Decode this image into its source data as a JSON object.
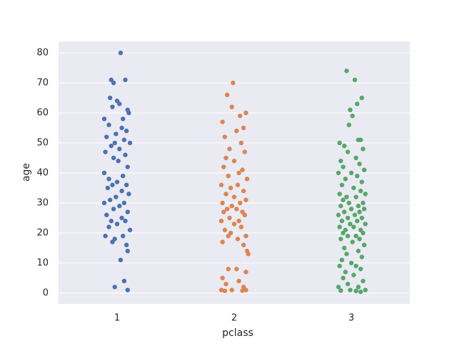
{
  "chart_data": {
    "type": "scatter",
    "x_label": "pclass",
    "y_label": "age",
    "xlim": [
      0.5,
      3.5
    ],
    "xticks": [
      1,
      2,
      3
    ],
    "ylim": [
      -3.6,
      83.8
    ],
    "yticks": [
      0,
      10,
      20,
      30,
      40,
      50,
      60,
      70,
      80
    ],
    "grid": "y",
    "background": "#eaeaf2",
    "series": [
      {
        "color": "#4c72b0",
        "x": [
          1.03,
          0.95,
          1.07,
          0.97,
          0.94,
          1.0,
          1.02,
          0.96,
          1.09,
          1.1,
          0.89,
          1.05,
          0.93,
          1.04,
          1.08,
          0.99,
          0.91,
          1.06,
          0.98,
          1.11,
          0.95,
          1.02,
          0.9,
          1.07,
          0.97,
          1.01,
          1.09,
          0.89,
          1.05,
          0.93,
          1.0,
          1.08,
          0.96,
          0.92,
          1.04,
          1.1,
          0.99,
          0.94,
          0.89,
          1.06,
          1.02,
          0.97,
          1.09,
          0.91,
          1.04,
          0.95,
          1.07,
          1.0,
          0.93,
          1.11,
          0.9,
          1.05,
          0.98,
          0.96,
          1.08,
          1.09,
          1.03,
          1.06,
          0.98,
          1.09
        ],
        "values": [
          80,
          71,
          71,
          70,
          65,
          64,
          63,
          62,
          61,
          60,
          58,
          58,
          56,
          55,
          54,
          53,
          52,
          51,
          50,
          50,
          49,
          48,
          47,
          46,
          45,
          44,
          42,
          40,
          39,
          38,
          37,
          36,
          36,
          35,
          34,
          33,
          32,
          31,
          30,
          30,
          29,
          28,
          27,
          26,
          25,
          24,
          24,
          23,
          22,
          21,
          19,
          19,
          18,
          17,
          16,
          14,
          11,
          4,
          2,
          1
        ]
      },
      {
        "color": "#dd8452",
        "x": [
          1.99,
          1.94,
          1.98,
          2.1,
          2.05,
          1.9,
          2.08,
          2.02,
          1.92,
          2.06,
          1.96,
          2.09,
          1.93,
          2.0,
          1.91,
          2.07,
          2.04,
          1.95,
          2.11,
          1.89,
          2.03,
          1.97,
          2.08,
          1.93,
          2.0,
          2.1,
          1.9,
          2.05,
          1.98,
          2.02,
          1.94,
          2.07,
          1.91,
          2.09,
          1.96,
          2.04,
          1.89,
          2.0,
          2.06,
          1.92,
          1.97,
          2.1,
          1.95,
          2.03,
          1.9,
          2.08,
          2.11,
          2.12,
          1.95,
          2.02,
          2.1,
          1.9,
          2.04,
          1.93,
          2.08,
          1.89,
          1.98,
          2.1,
          2.07,
          1.92
        ],
        "values": [
          70,
          66,
          62,
          60,
          59,
          57,
          55,
          54,
          52,
          50,
          48,
          47,
          45,
          44,
          42,
          41,
          40,
          39,
          38,
          36,
          36,
          35,
          34,
          33,
          32,
          31,
          30,
          30,
          29,
          28,
          28,
          27,
          27,
          26,
          25,
          24,
          24,
          23,
          22,
          21,
          20,
          19,
          19,
          18,
          17,
          16,
          14,
          13,
          8,
          8,
          7,
          5,
          4,
          3,
          2,
          1,
          1,
          1,
          0.8,
          0.7
        ]
      },
      {
        "color": "#55a868",
        "x": [
          2.96,
          3.03,
          3.09,
          3.05,
          2.99,
          3.01,
          2.98,
          3.06,
          3.08,
          2.9,
          2.94,
          3.1,
          2.97,
          3.04,
          2.91,
          3.07,
          2.93,
          3.11,
          3.0,
          2.89,
          3.05,
          2.95,
          3.09,
          2.92,
          3.02,
          3.08,
          2.9,
          3.12,
          2.96,
          3.04,
          2.93,
          3.1,
          2.98,
          3.06,
          2.91,
          3.0,
          3.11,
          2.94,
          3.07,
          2.89,
          3.03,
          2.97,
          3.09,
          2.92,
          3.05,
          2.99,
          3.12,
          2.9,
          3.02,
          3.08,
          2.95,
          3.1,
          2.93,
          3.04,
          2.97,
          3.07,
          2.91,
          3.01,
          3.11,
          2.94,
          3.06,
          2.96,
          3.09,
          2.92,
          3.0,
          2.9,
          3.04,
          3.08,
          2.95,
          3.02,
          2.93,
          3.1,
          2.97,
          2.89,
          3.06,
          2.99,
          3.12,
          2.91,
          3.04,
          3.08
        ],
        "values": [
          74,
          71,
          65,
          63,
          61,
          59,
          56,
          51,
          51,
          50,
          49,
          48,
          47,
          45,
          44,
          43,
          42,
          41,
          40,
          40,
          39,
          38,
          37,
          36,
          35,
          34,
          33,
          33,
          32,
          32,
          31,
          30,
          30,
          29,
          29,
          28,
          28,
          27,
          27,
          26,
          26,
          25,
          25,
          24,
          24,
          23,
          23,
          22,
          22,
          21,
          21,
          20,
          20,
          19,
          19,
          18,
          18,
          17,
          16,
          15,
          14,
          13,
          12,
          11,
          10,
          9,
          9,
          8,
          7,
          6,
          5,
          4,
          3,
          2,
          2,
          1,
          1,
          0.8,
          0.7,
          0.4
        ]
      }
    ]
  }
}
